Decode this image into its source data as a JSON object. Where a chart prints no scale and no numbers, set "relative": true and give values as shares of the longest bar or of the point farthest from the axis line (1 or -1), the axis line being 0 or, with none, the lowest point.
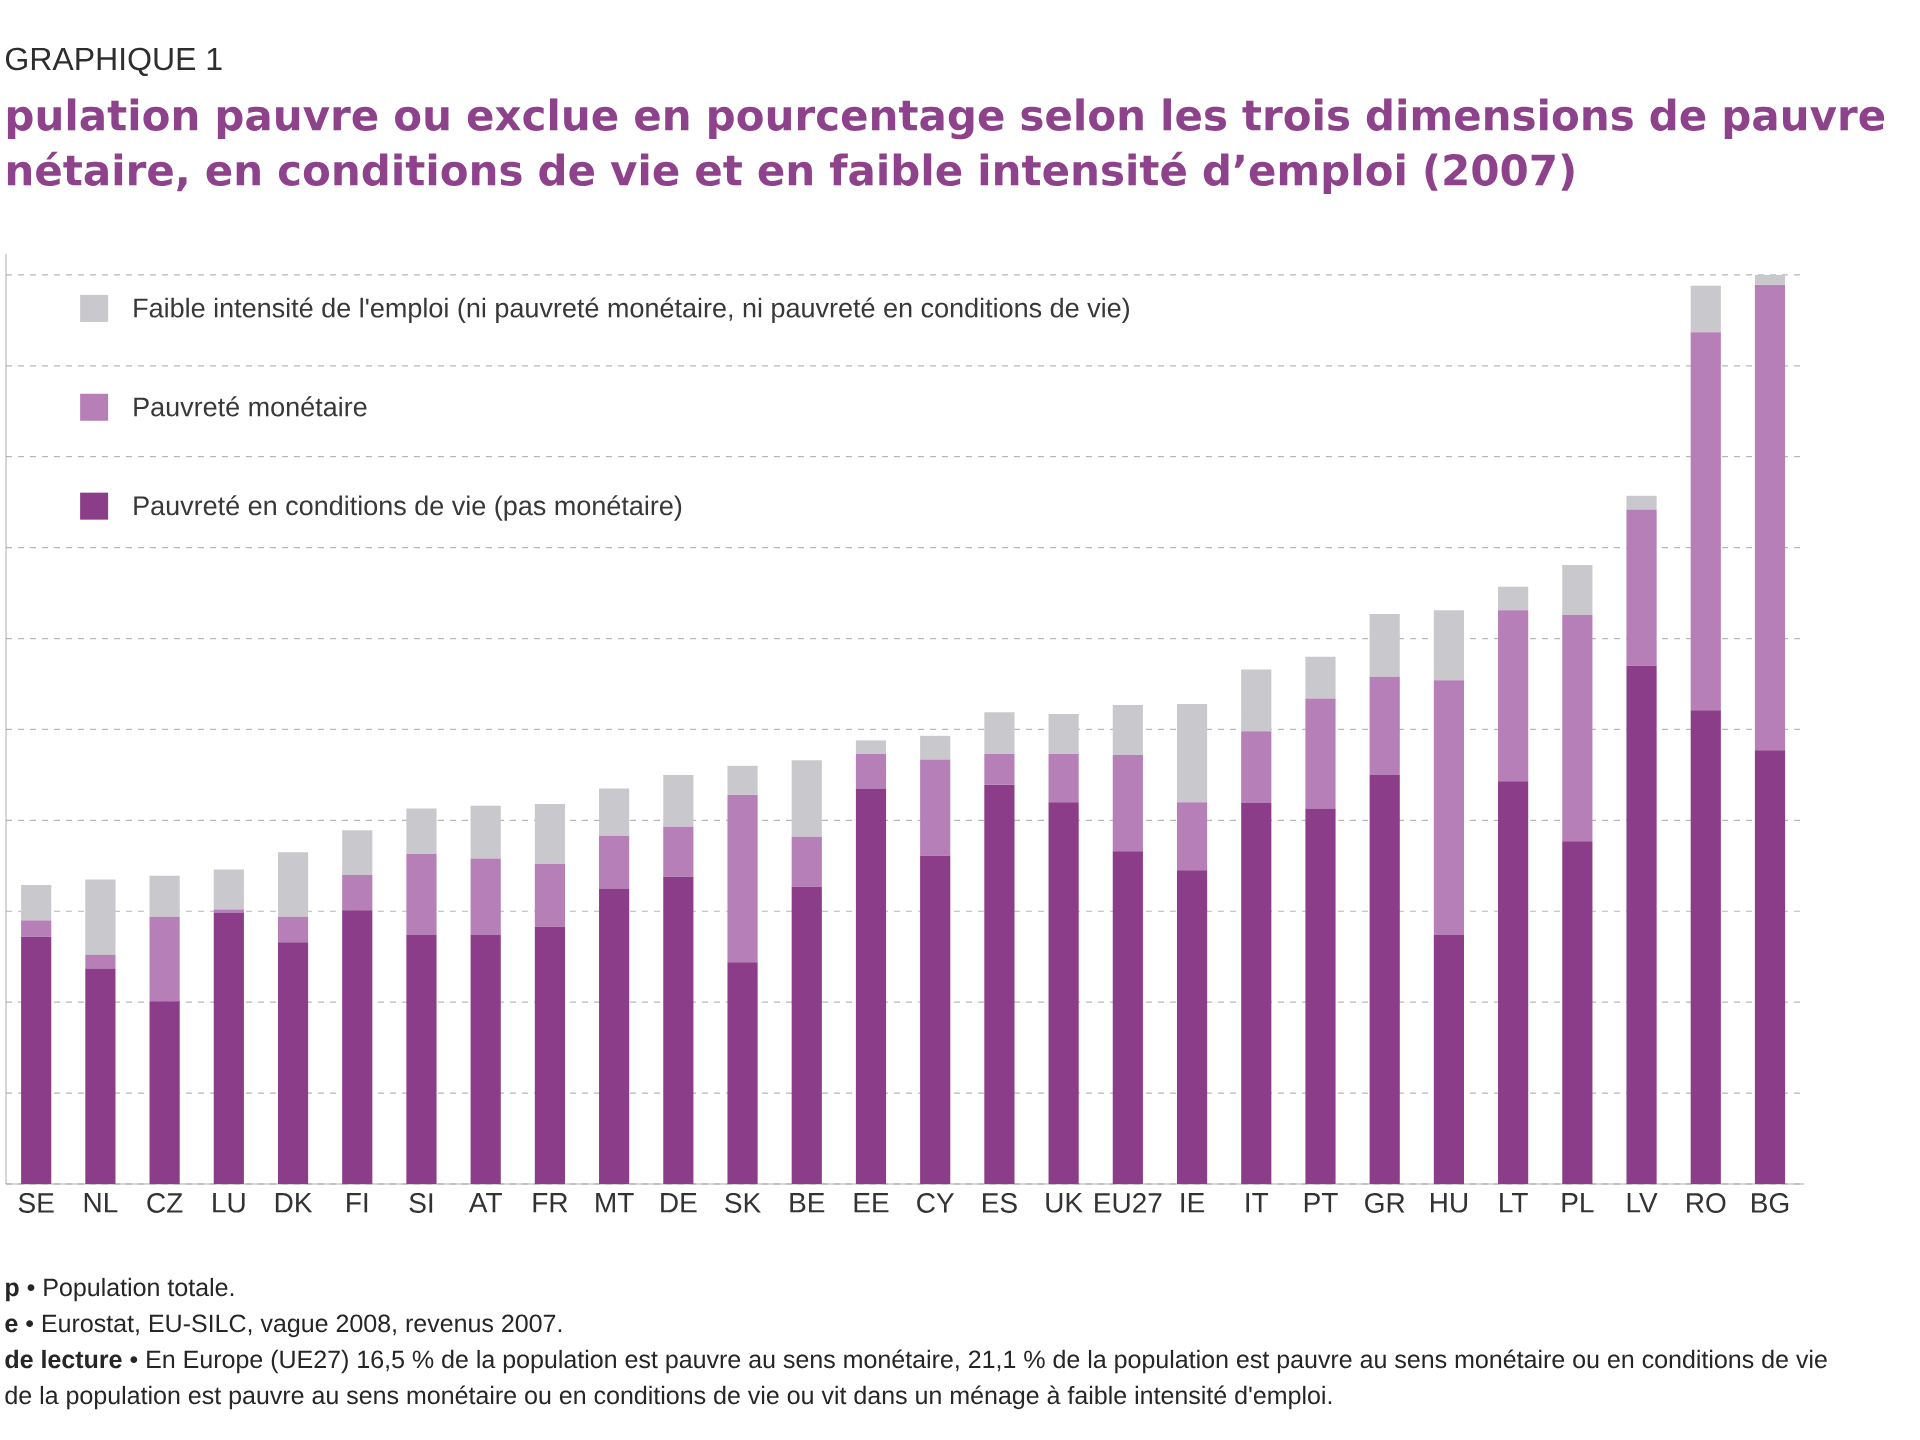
{
  "chart_data": {
    "type": "bar",
    "stacked": true,
    "relative": true,
    "title": "pulation pauvre ou exclue en pourcentage selon les trois dimensions de pauvre nétaire, en conditions de vie et en faible intensité d’emploi (2007)",
    "annotations": [
      "GRAPHIQUE 1",
      "**p** • Population totale.",
      "**e** • Eurostat, EU-SILC, vague 2008, revenus 2007.",
      "**de lecture** • En Europe (UE27) 16,5 % de la population est pauvre au sens monétaire, 21,1 % de la population est pauvre au sens monétaire ou en conditions de vie",
      "de la population est pauvre au sens monétaire ou en conditions de vie ou vit dans un ménage à faible intensité d'emploi."
    ],
    "categories": [
      "SE",
      "NL",
      "CZ",
      "LU",
      "DK",
      "FI",
      "SI",
      "AT",
      "FR",
      "MT",
      "DE",
      "SK",
      "BE",
      "EE",
      "CY",
      "ES",
      "UK",
      "EU27",
      "IE",
      "IT",
      "PT",
      "GR",
      "HU",
      "LT",
      "PL",
      "LV",
      "RO",
      "BG"
    ],
    "series": [
      {
        "name": "Pauvreté en conditions de vie (pas monétaire)",
        "color": "#8c3d8a",
        "values": [
          0.272,
          0.237,
          0.201,
          0.298,
          0.266,
          0.301,
          0.274,
          0.274,
          0.283,
          0.325,
          0.338,
          0.244,
          0.327,
          0.435,
          0.361,
          0.439,
          0.42,
          0.366,
          0.345,
          0.419,
          0.413,
          0.45,
          0.274,
          0.443,
          0.377,
          0.57,
          0.521,
          0.477
        ]
      },
      {
        "name": "Pauvreté monétaire",
        "color": "#b77fb7",
        "values": [
          0.018,
          0.015,
          0.093,
          0.004,
          0.028,
          0.039,
          0.089,
          0.084,
          0.069,
          0.058,
          0.055,
          0.184,
          0.055,
          0.038,
          0.106,
          0.034,
          0.053,
          0.106,
          0.075,
          0.079,
          0.121,
          0.108,
          0.28,
          0.188,
          0.249,
          0.172,
          0.416,
          0.512
        ]
      },
      {
        "name": "Faible intensité de l'emploi (ni pauvreté monétaire, ni pauvreté en conditions de vie)",
        "color": "#c9c9cd",
        "values": [
          0.039,
          0.083,
          0.045,
          0.044,
          0.071,
          0.049,
          0.05,
          0.058,
          0.066,
          0.052,
          0.057,
          0.032,
          0.084,
          0.015,
          0.026,
          0.046,
          0.044,
          0.055,
          0.108,
          0.068,
          0.046,
          0.069,
          0.077,
          0.026,
          0.055,
          0.015,
          0.051,
          0.011
        ]
      }
    ],
    "grid": "y",
    "legend": "top left",
    "tick_labels": "x"
  }
}
